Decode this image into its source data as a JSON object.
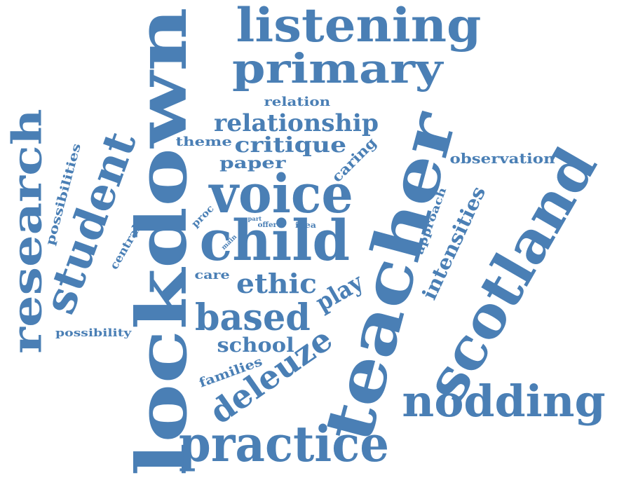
{
  "word_color": "#4a7fb5",
  "background": "#ffffff",
  "words": [
    "lockdown",
    "teacher",
    "scotland",
    "student",
    "research",
    "child",
    "voice",
    "practice",
    "listening",
    "primary",
    "nodding",
    "deleuze",
    "based",
    "ethic",
    "relationship",
    "critique",
    "school",
    "intensities",
    "observation",
    "play",
    "possibilities",
    "families",
    "possibility",
    "approach",
    "relation",
    "paper",
    "theme",
    "caring",
    "care",
    "central",
    "proc",
    "idea",
    "part",
    "offer",
    "main"
  ]
}
